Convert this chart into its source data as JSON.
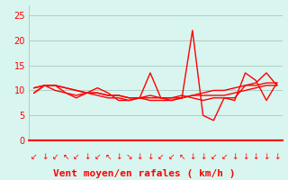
{
  "background_color": "#d9f5ef",
  "plot_bg_color": "#d9f5ef",
  "grid_color": "#b0ccc8",
  "line_color": "#ff0000",
  "xlabel": "Vent moyen/en rafales ( km/h )",
  "xlabel_color": "#ff0000",
  "xlabel_fontsize": 8,
  "ytick_color": "#ff0000",
  "ytick_fontsize": 7,
  "ylim": [
    0,
    27
  ],
  "yticks": [
    0,
    5,
    10,
    15,
    20,
    25
  ],
  "n_points": 24,
  "line1": [
    9.5,
    11.0,
    11.0,
    10.5,
    10.0,
    9.5,
    9.5,
    9.0,
    9.0,
    8.5,
    8.5,
    8.5,
    8.5,
    8.5,
    8.5,
    9.0,
    9.0,
    9.0,
    9.0,
    9.5,
    10.0,
    10.5,
    11.0,
    11.0
  ],
  "line2": [
    10.5,
    11.0,
    11.0,
    10.5,
    10.0,
    9.5,
    9.0,
    8.5,
    8.5,
    8.0,
    8.5,
    8.0,
    8.0,
    8.0,
    8.5,
    9.0,
    9.5,
    10.0,
    10.0,
    10.5,
    11.0,
    11.0,
    11.5,
    11.5
  ],
  "line3": [
    9.5,
    11.0,
    10.0,
    9.5,
    8.5,
    9.5,
    10.5,
    9.5,
    8.0,
    8.0,
    8.5,
    13.5,
    8.5,
    8.0,
    8.5,
    22.0,
    5.0,
    4.0,
    8.5,
    8.0,
    13.5,
    12.0,
    8.0,
    11.5
  ],
  "line4": [
    10.5,
    11.0,
    11.0,
    9.5,
    9.0,
    9.5,
    9.5,
    9.0,
    9.0,
    8.5,
    8.5,
    9.0,
    8.5,
    8.5,
    9.0,
    8.5,
    8.0,
    8.5,
    8.5,
    8.5,
    11.0,
    11.5,
    13.5,
    11.0
  ],
  "arrow_chars": [
    "↙",
    "↓",
    "↙",
    "↖",
    "↙",
    "↓",
    "↙",
    "↖",
    "↓",
    "↘",
    "↓",
    "↓",
    "↙",
    "↙",
    "↖",
    "↓",
    "↓",
    "↙",
    "↙",
    "↓",
    "↓",
    "↓",
    "↓",
    "↓"
  ]
}
